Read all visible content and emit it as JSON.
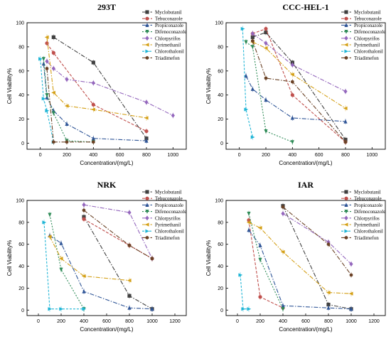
{
  "chart_data": [
    {
      "type": "line",
      "title": "293T",
      "xlabel": "Concentration/(mg/L)",
      "ylabel": "Cell Viability%",
      "xlim": [
        -100,
        1100
      ],
      "ylim": [
        -5,
        100
      ],
      "xticks": [
        0,
        200,
        400,
        600,
        800,
        1000
      ],
      "yticks": [
        0,
        20,
        40,
        60,
        80,
        100
      ],
      "legend_position": "top-right",
      "series": [
        {
          "name": "Myclobutanil",
          "color": "#404040",
          "marker": "square",
          "x": [
            100,
            400,
            800
          ],
          "y": [
            88,
            67,
            4
          ]
        },
        {
          "name": "Tebuconazole",
          "color": "#c0504d",
          "marker": "circle",
          "x": [
            50,
            100,
            400,
            800
          ],
          "y": [
            83,
            75,
            32,
            10
          ]
        },
        {
          "name": "Propiconazole",
          "color": "#2f5597",
          "marker": "triangle-up",
          "x": [
            25,
            50,
            100,
            200,
            400,
            800
          ],
          "y": [
            66,
            38,
            27,
            16,
            4,
            2
          ]
        },
        {
          "name": "Difenoconazole",
          "color": "#2e8b57",
          "marker": "triangle-down",
          "x": [
            25,
            50,
            100,
            200,
            400
          ],
          "y": [
            70,
            40,
            25,
            2,
            1
          ]
        },
        {
          "name": "Chlorpyrifos",
          "color": "#9467bd",
          "marker": "diamond",
          "x": [
            50,
            100,
            200,
            400,
            800,
            1000
          ],
          "y": [
            68,
            62,
            53,
            50,
            34,
            23
          ]
        },
        {
          "name": "Pyrimethanil",
          "color": "#d4a017",
          "marker": "triangle-left",
          "x": [
            50,
            100,
            200,
            400,
            800
          ],
          "y": [
            88,
            42,
            31,
            28,
            21
          ]
        },
        {
          "name": "Chlorothalonil",
          "color": "#1fb5d6",
          "marker": "triangle-right",
          "x": [
            0,
            25,
            50,
            100
          ],
          "y": [
            70,
            37,
            27,
            1
          ]
        },
        {
          "name": "Triadimefon",
          "color": "#6b4226",
          "marker": "hexagon",
          "x": [
            50,
            100,
            200,
            400
          ],
          "y": [
            62,
            1,
            1,
            1
          ]
        }
      ]
    },
    {
      "type": "line",
      "title": "CCC-HEL-1",
      "xlabel": "Concentration/(mg/L)",
      "ylabel": "Cell Viability%",
      "xlim": [
        -100,
        1100
      ],
      "ylim": [
        -5,
        100
      ],
      "xticks": [
        0,
        200,
        400,
        600,
        800,
        1000
      ],
      "yticks": [
        0,
        20,
        40,
        60,
        80,
        100
      ],
      "legend_position": "top-right",
      "series": [
        {
          "name": "Myclobutanil",
          "color": "#404040",
          "marker": "square",
          "x": [
            100,
            200,
            400,
            800
          ],
          "y": [
            88,
            92,
            67,
            3
          ]
        },
        {
          "name": "Tebuconazole",
          "color": "#c0504d",
          "marker": "circle",
          "x": [
            100,
            200,
            400,
            800
          ],
          "y": [
            91,
            95,
            40,
            1
          ]
        },
        {
          "name": "Propiconazole",
          "color": "#2f5597",
          "marker": "triangle-up",
          "x": [
            50,
            100,
            200,
            400,
            800
          ],
          "y": [
            56,
            45,
            36,
            21,
            18
          ]
        },
        {
          "name": "Difenoconazole",
          "color": "#2e8b57",
          "marker": "triangle-down",
          "x": [
            50,
            100,
            200,
            400
          ],
          "y": [
            84,
            80,
            10,
            1
          ]
        },
        {
          "name": "Chlorpyrifos",
          "color": "#9467bd",
          "marker": "diamond",
          "x": [
            100,
            200,
            400,
            800
          ],
          "y": [
            91,
            83,
            65,
            43
          ]
        },
        {
          "name": "Pyrimethanil",
          "color": "#d4a017",
          "marker": "triangle-left",
          "x": [
            100,
            200,
            400,
            800
          ],
          "y": [
            84,
            79,
            57,
            29
          ]
        },
        {
          "name": "Chlorothalonil",
          "color": "#1fb5d6",
          "marker": "triangle-right",
          "x": [
            25,
            50,
            100
          ],
          "y": [
            95,
            28,
            5
          ]
        },
        {
          "name": "Triadimefon",
          "color": "#6b4226",
          "marker": "hexagon",
          "x": [
            100,
            200,
            400,
            800
          ],
          "y": [
            85,
            54,
            51,
            1
          ]
        }
      ]
    },
    {
      "type": "line",
      "title": "NRK",
      "xlabel": "Concentration/(mg/L)",
      "ylabel": "Cell Viability%",
      "xlim": [
        -100,
        1300
      ],
      "ylim": [
        -5,
        100
      ],
      "xticks": [
        0,
        200,
        400,
        600,
        800,
        1000,
        1200
      ],
      "yticks": [
        0,
        20,
        40,
        60,
        80,
        100
      ],
      "legend_position": "top-right",
      "series": [
        {
          "name": "Myclobutanil",
          "color": "#404040",
          "marker": "square",
          "x": [
            400,
            800,
            1000
          ],
          "y": [
            85,
            13,
            1
          ]
        },
        {
          "name": "Tebuconazole",
          "color": "#c0504d",
          "marker": "circle",
          "x": [
            400,
            800,
            1000
          ],
          "y": [
            83,
            59,
            47
          ]
        },
        {
          "name": "Propiconazole",
          "color": "#2f5597",
          "marker": "triangle-up",
          "x": [
            100,
            200,
            400,
            800,
            1000
          ],
          "y": [
            68,
            61,
            17,
            2,
            1
          ]
        },
        {
          "name": "Difenoconazole",
          "color": "#2e8b57",
          "marker": "triangle-down",
          "x": [
            100,
            200,
            400
          ],
          "y": [
            87,
            37,
            1
          ]
        },
        {
          "name": "Chlorpyrifos",
          "color": "#9467bd",
          "marker": "diamond",
          "x": [
            400,
            800,
            1000
          ],
          "y": [
            96,
            89,
            47
          ]
        },
        {
          "name": "Pyrimethanil",
          "color": "#d4a017",
          "marker": "triangle-left",
          "x": [
            100,
            200,
            400,
            800
          ],
          "y": [
            67,
            47,
            31,
            27
          ]
        },
        {
          "name": "Chlorothalonil",
          "color": "#1fb5d6",
          "marker": "triangle-right",
          "x": [
            50,
            100,
            200,
            400
          ],
          "y": [
            80,
            1,
            1,
            1
          ]
        },
        {
          "name": "Triadimefon",
          "color": "#6b4226",
          "marker": "hexagon",
          "x": [
            400,
            800,
            1000
          ],
          "y": [
            91,
            59,
            47
          ]
        }
      ]
    },
    {
      "type": "line",
      "title": "IAR",
      "xlabel": "Concentration/(mg/L)",
      "ylabel": "Cell Viability%",
      "xlim": [
        -100,
        1300
      ],
      "ylim": [
        -5,
        100
      ],
      "xticks": [
        0,
        200,
        400,
        600,
        800,
        1000,
        1200
      ],
      "yticks": [
        0,
        20,
        40,
        60,
        80,
        100
      ],
      "legend_position": "top-right",
      "series": [
        {
          "name": "Myclobutanil",
          "color": "#404040",
          "marker": "square",
          "x": [
            400,
            800,
            1000
          ],
          "y": [
            95,
            5,
            1
          ]
        },
        {
          "name": "Tebuconazole",
          "color": "#c0504d",
          "marker": "circle",
          "x": [
            100,
            200,
            400
          ],
          "y": [
            82,
            12,
            2
          ]
        },
        {
          "name": "Propiconazole",
          "color": "#2f5597",
          "marker": "triangle-up",
          "x": [
            100,
            200,
            400,
            800,
            1000
          ],
          "y": [
            73,
            59,
            4,
            2,
            1
          ]
        },
        {
          "name": "Difenoconazole",
          "color": "#2e8b57",
          "marker": "triangle-down",
          "x": [
            100,
            200,
            400
          ],
          "y": [
            88,
            46,
            1
          ]
        },
        {
          "name": "Chlorpyrifos",
          "color": "#9467bd",
          "marker": "diamond",
          "x": [
            400,
            800,
            1000
          ],
          "y": [
            88,
            62,
            42
          ]
        },
        {
          "name": "Pyrimethanil",
          "color": "#d4a017",
          "marker": "triangle-left",
          "x": [
            100,
            200,
            400,
            800,
            1000
          ],
          "y": [
            80,
            75,
            53,
            16,
            15
          ]
        },
        {
          "name": "Chlorothalonil",
          "color": "#1fb5d6",
          "marker": "triangle-right",
          "x": [
            25,
            50,
            100
          ],
          "y": [
            32,
            1,
            1
          ]
        },
        {
          "name": "Triadimefon",
          "color": "#6b4226",
          "marker": "hexagon",
          "x": [
            400,
            800,
            1000
          ],
          "y": [
            94,
            60,
            32
          ]
        }
      ]
    }
  ]
}
